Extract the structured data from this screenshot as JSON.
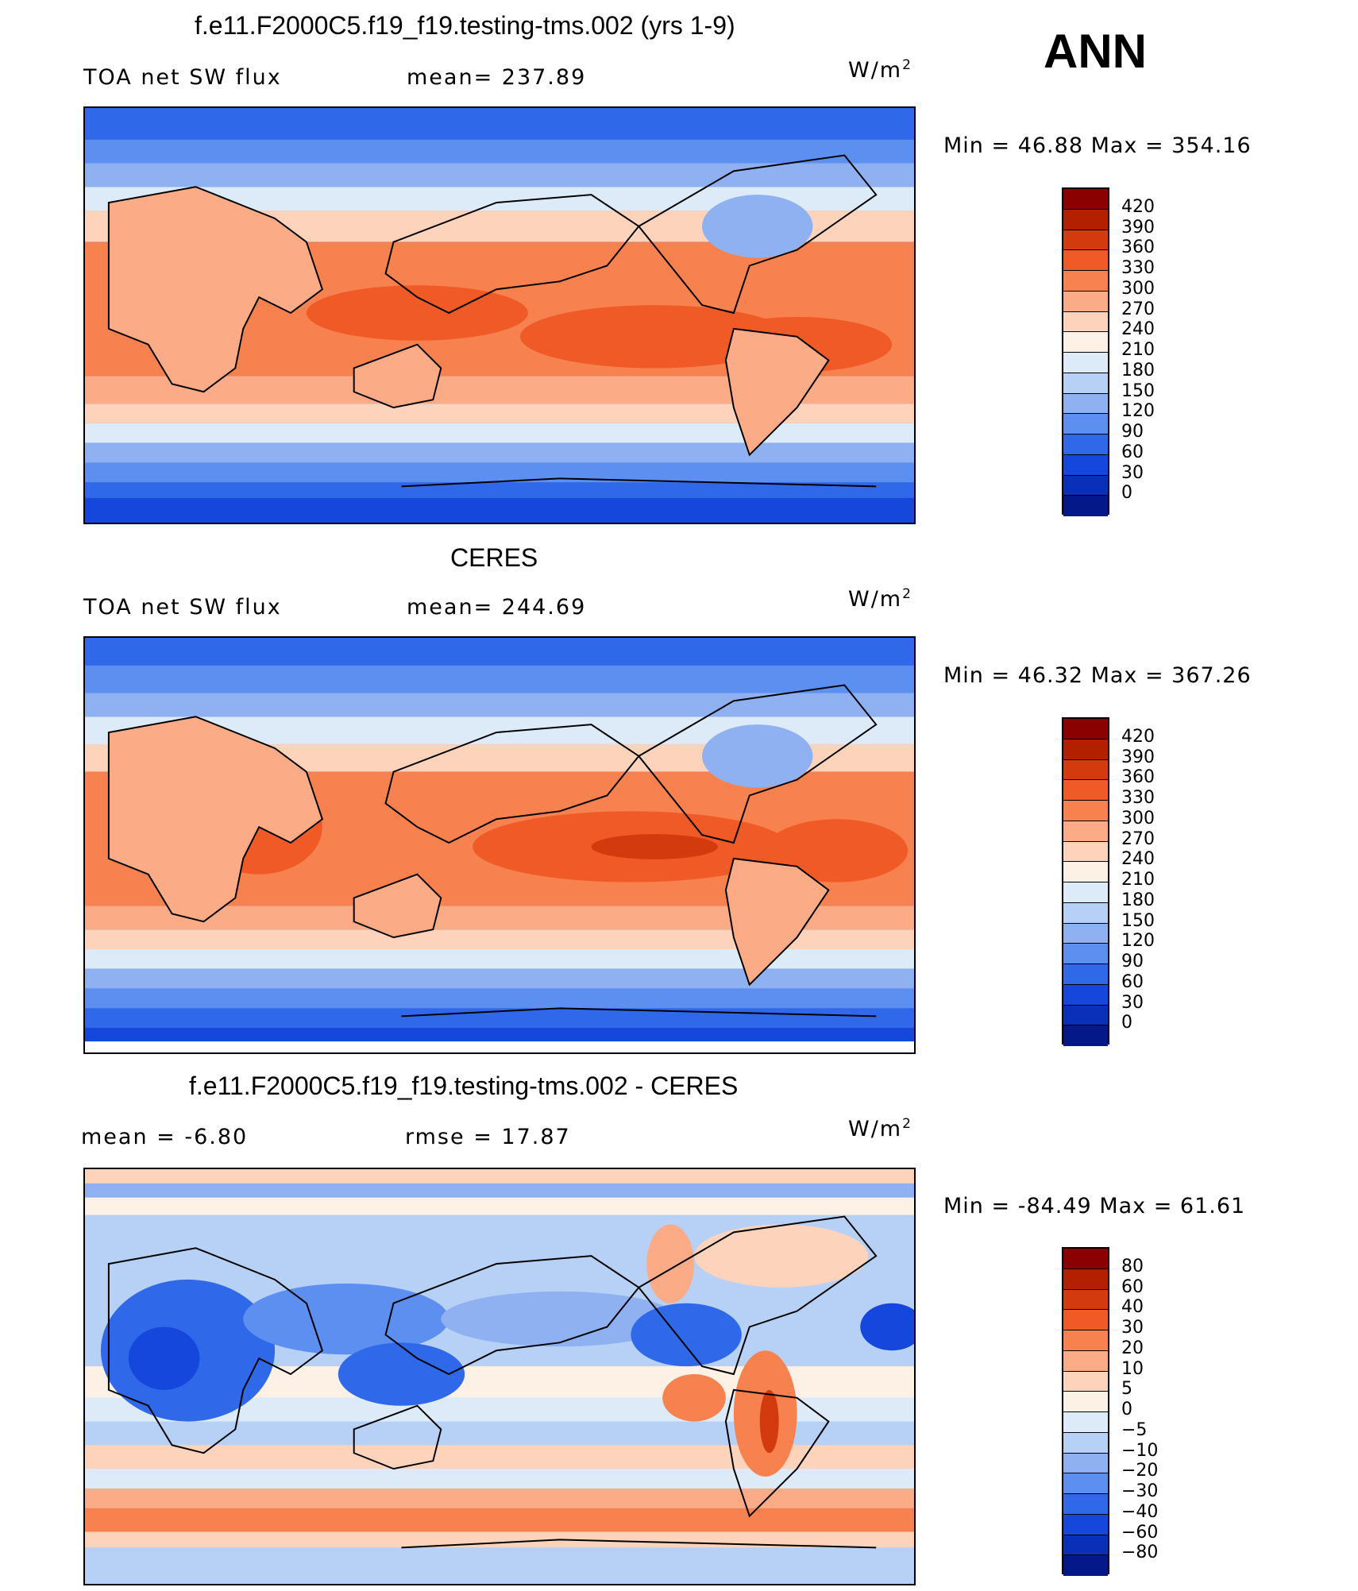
{
  "season": "ANN",
  "panels": [
    {
      "id": "model",
      "title": "f.e11.F2000C5.f19_f19.testing-tms.002 (yrs 1-9)",
      "left_label": "TOA net SW flux",
      "center_label": "mean= 237.89",
      "units": "W/m",
      "units_sup": "2",
      "minmax": "Min =   46.88 Max =  354.16",
      "colorbar": {
        "labels": [
          "420",
          "390",
          "360",
          "330",
          "300",
          "270",
          "240",
          "210",
          "180",
          "150",
          "120",
          "90",
          "60",
          "30",
          "0"
        ],
        "colors": [
          "#8b0000",
          "#b22000",
          "#d33a0d",
          "#ef5a27",
          "#f7824f",
          "#fbac86",
          "#fdd3bb",
          "#fdf0e4",
          "#ddebf9",
          "#b6d0f6",
          "#8fb1f2",
          "#5c8ff0",
          "#2f69ea",
          "#1647dc",
          "#0a2fb8",
          "#05188a"
        ]
      }
    },
    {
      "id": "obs",
      "title": "CERES",
      "left_label": "TOA net SW flux",
      "center_label": "mean= 244.69",
      "units": "W/m",
      "units_sup": "2",
      "minmax": "Min =   46.32 Max =  367.26",
      "colorbar": {
        "labels": [
          "420",
          "390",
          "360",
          "330",
          "300",
          "270",
          "240",
          "210",
          "180",
          "150",
          "120",
          "90",
          "60",
          "30",
          "0"
        ],
        "colors": [
          "#8b0000",
          "#b22000",
          "#d33a0d",
          "#ef5a27",
          "#f7824f",
          "#fbac86",
          "#fdd3bb",
          "#fdf0e4",
          "#ddebf9",
          "#b6d0f6",
          "#8fb1f2",
          "#5c8ff0",
          "#2f69ea",
          "#1647dc",
          "#0a2fb8",
          "#05188a"
        ]
      }
    },
    {
      "id": "diff",
      "title": "f.e11.F2000C5.f19_f19.testing-tms.002 - CERES",
      "left_label": "mean =   -6.80",
      "center_label": "rmse =   17.87",
      "units": "W/m",
      "units_sup": "2",
      "minmax": "Min = -84.49 Max =   61.61",
      "colorbar": {
        "labels": [
          "80",
          "60",
          "40",
          "30",
          "20",
          "10",
          "5",
          "0",
          "-5",
          "-10",
          "-20",
          "-30",
          "-40",
          "-60",
          "-80"
        ],
        "colors": [
          "#8b0000",
          "#b22000",
          "#d33a0d",
          "#ef5a27",
          "#f7824f",
          "#fbac86",
          "#fdd3bb",
          "#fdf0e4",
          "#ddebf9",
          "#b6d0f6",
          "#8fb1f2",
          "#5c8ff0",
          "#2f69ea",
          "#1647dc",
          "#0a2fb8",
          "#05188a"
        ]
      }
    }
  ]
}
